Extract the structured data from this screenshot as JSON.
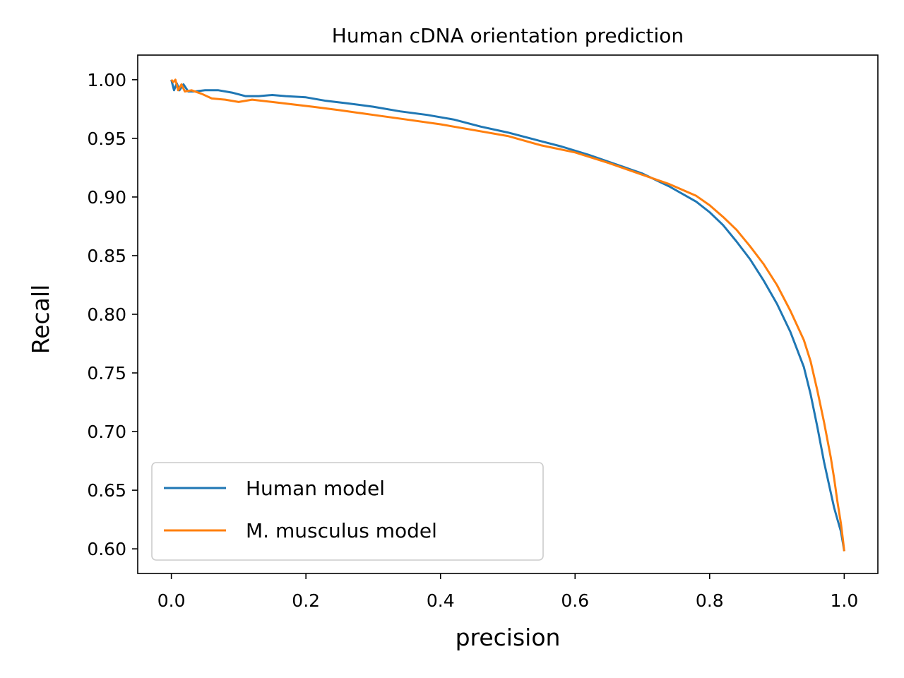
{
  "chart_data": {
    "type": "line",
    "title": "Human cDNA orientation prediction",
    "xlabel": "precision",
    "ylabel": "Recall",
    "xlim": [
      -0.05,
      1.05
    ],
    "ylim": [
      0.579,
      1.021
    ],
    "xticks": [
      0.0,
      0.2,
      0.4,
      0.6,
      0.8,
      1.0
    ],
    "xtick_labels": [
      "0.0",
      "0.2",
      "0.4",
      "0.6",
      "0.8",
      "1.0"
    ],
    "yticks": [
      0.6,
      0.65,
      0.7,
      0.75,
      0.8,
      0.85,
      0.9,
      0.95,
      1.0
    ],
    "ytick_labels": [
      "0.60",
      "0.65",
      "0.70",
      "0.75",
      "0.80",
      "0.85",
      "0.90",
      "0.95",
      "1.00"
    ],
    "grid": false,
    "legend_position": "lower-left",
    "series": [
      {
        "name": "Human model",
        "color": "#1f77b4",
        "x": [
          0.0,
          0.004,
          0.008,
          0.012,
          0.018,
          0.025,
          0.035,
          0.05,
          0.07,
          0.09,
          0.11,
          0.13,
          0.15,
          0.17,
          0.2,
          0.23,
          0.26,
          0.3,
          0.34,
          0.38,
          0.42,
          0.46,
          0.5,
          0.54,
          0.58,
          0.62,
          0.66,
          0.7,
          0.74,
          0.78,
          0.8,
          0.82,
          0.84,
          0.86,
          0.88,
          0.9,
          0.92,
          0.94,
          0.95,
          0.96,
          0.97,
          0.98,
          0.985,
          0.99,
          0.995,
          0.998,
          1.0
        ],
        "y": [
          1.0,
          0.991,
          0.997,
          0.991,
          0.996,
          0.99,
          0.99,
          0.991,
          0.991,
          0.989,
          0.986,
          0.986,
          0.987,
          0.986,
          0.985,
          0.982,
          0.98,
          0.977,
          0.973,
          0.97,
          0.966,
          0.96,
          0.955,
          0.949,
          0.943,
          0.936,
          0.928,
          0.92,
          0.909,
          0.896,
          0.887,
          0.876,
          0.862,
          0.847,
          0.829,
          0.809,
          0.785,
          0.755,
          0.732,
          0.704,
          0.674,
          0.648,
          0.635,
          0.625,
          0.615,
          0.605,
          0.598
        ]
      },
      {
        "name": "M. musculus model",
        "color": "#ff7f0e",
        "x": [
          0.0,
          0.003,
          0.006,
          0.01,
          0.015,
          0.02,
          0.03,
          0.045,
          0.06,
          0.08,
          0.1,
          0.12,
          0.15,
          0.18,
          0.21,
          0.25,
          0.3,
          0.35,
          0.4,
          0.45,
          0.5,
          0.55,
          0.6,
          0.65,
          0.7,
          0.74,
          0.78,
          0.8,
          0.82,
          0.84,
          0.86,
          0.88,
          0.9,
          0.92,
          0.94,
          0.95,
          0.96,
          0.97,
          0.98,
          0.985,
          0.99,
          0.995,
          0.998,
          1.0
        ],
        "y": [
          1.0,
          0.998,
          1.0,
          0.991,
          0.996,
          0.99,
          0.991,
          0.988,
          0.984,
          0.983,
          0.981,
          0.983,
          0.981,
          0.979,
          0.977,
          0.974,
          0.97,
          0.966,
          0.962,
          0.957,
          0.952,
          0.944,
          0.938,
          0.929,
          0.919,
          0.911,
          0.901,
          0.893,
          0.883,
          0.872,
          0.858,
          0.843,
          0.825,
          0.803,
          0.778,
          0.76,
          0.735,
          0.708,
          0.678,
          0.66,
          0.64,
          0.622,
          0.608,
          0.598
        ]
      }
    ]
  }
}
